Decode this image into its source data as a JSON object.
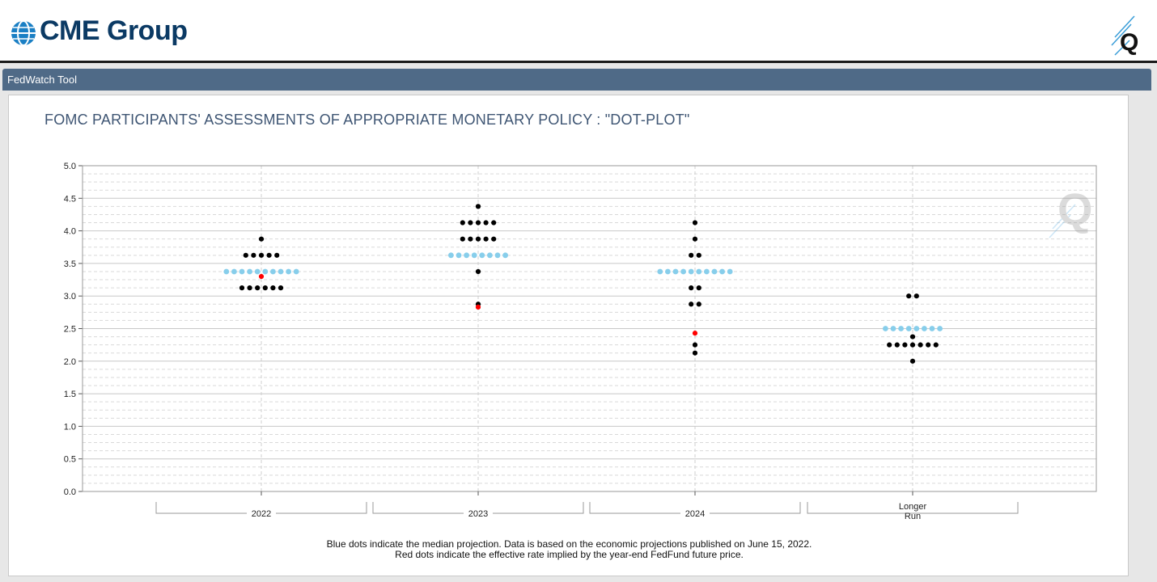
{
  "header": {
    "logo_text": "CME Group",
    "app_title": "FedWatch Tool",
    "icons": [
      "globe-icon",
      "q-logo-icon",
      "q-watermark-icon"
    ]
  },
  "chart_data": {
    "type": "scatter",
    "title": "FOMC PARTICIPANTS' ASSESSMENTS OF APPROPRIATE MONETARY POLICY : \"DOT-PLOT\"",
    "xlabel": "",
    "ylabel": "",
    "ylim": [
      0,
      5
    ],
    "yticks": [
      "0.0",
      "0.5",
      "1.0",
      "1.5",
      "2.0",
      "2.5",
      "3.0",
      "3.5",
      "4.0",
      "4.5",
      "5.0"
    ],
    "grid": true,
    "categories": [
      "2022",
      "2023",
      "2024",
      "Longer Run"
    ],
    "colors": {
      "participant": "#000000",
      "median": "#87ceeb",
      "implied": "#ff0000"
    },
    "series": [
      {
        "name": "Participants",
        "color": "#000000",
        "points": [
          {
            "category": "2022",
            "y": 3.875,
            "count": 1
          },
          {
            "category": "2022",
            "y": 3.625,
            "count": 5
          },
          {
            "category": "2022",
            "y": 3.125,
            "count": 6
          },
          {
            "category": "2023",
            "y": 4.375,
            "count": 1
          },
          {
            "category": "2023",
            "y": 4.125,
            "count": 5
          },
          {
            "category": "2023",
            "y": 3.875,
            "count": 5
          },
          {
            "category": "2023",
            "y": 3.375,
            "count": 1
          },
          {
            "category": "2023",
            "y": 2.875,
            "count": 1
          },
          {
            "category": "2024",
            "y": 4.125,
            "count": 1
          },
          {
            "category": "2024",
            "y": 3.875,
            "count": 1
          },
          {
            "category": "2024",
            "y": 3.625,
            "count": 2
          },
          {
            "category": "2024",
            "y": 3.125,
            "count": 2
          },
          {
            "category": "2024",
            "y": 2.875,
            "count": 2
          },
          {
            "category": "2024",
            "y": 2.25,
            "count": 1
          },
          {
            "category": "2024",
            "y": 2.125,
            "count": 1
          },
          {
            "category": "Longer Run",
            "y": 3.0,
            "count": 2
          },
          {
            "category": "Longer Run",
            "y": 2.375,
            "count": 1
          },
          {
            "category": "Longer Run",
            "y": 2.25,
            "count": 7
          },
          {
            "category": "Longer Run",
            "y": 2.0,
            "count": 1
          }
        ]
      },
      {
        "name": "Median",
        "color": "#87ceeb",
        "points": [
          {
            "category": "2022",
            "y": 3.375,
            "count": 10
          },
          {
            "category": "2023",
            "y": 3.625,
            "count": 8
          },
          {
            "category": "2024",
            "y": 3.375,
            "count": 10
          },
          {
            "category": "Longer Run",
            "y": 2.5,
            "count": 8
          }
        ]
      },
      {
        "name": "Implied",
        "color": "#ff0000",
        "points": [
          {
            "category": "2022",
            "y": 3.3,
            "count": 1
          },
          {
            "category": "2023",
            "y": 2.83,
            "count": 1
          },
          {
            "category": "2024",
            "y": 2.43,
            "count": 1
          }
        ]
      }
    ],
    "notes": [
      "Blue dots indicate the median projection. Data is based on the economic projections published on June 15, 2022.",
      "Red dots indicate the effective rate implied by the year-end FedFund future price."
    ]
  }
}
